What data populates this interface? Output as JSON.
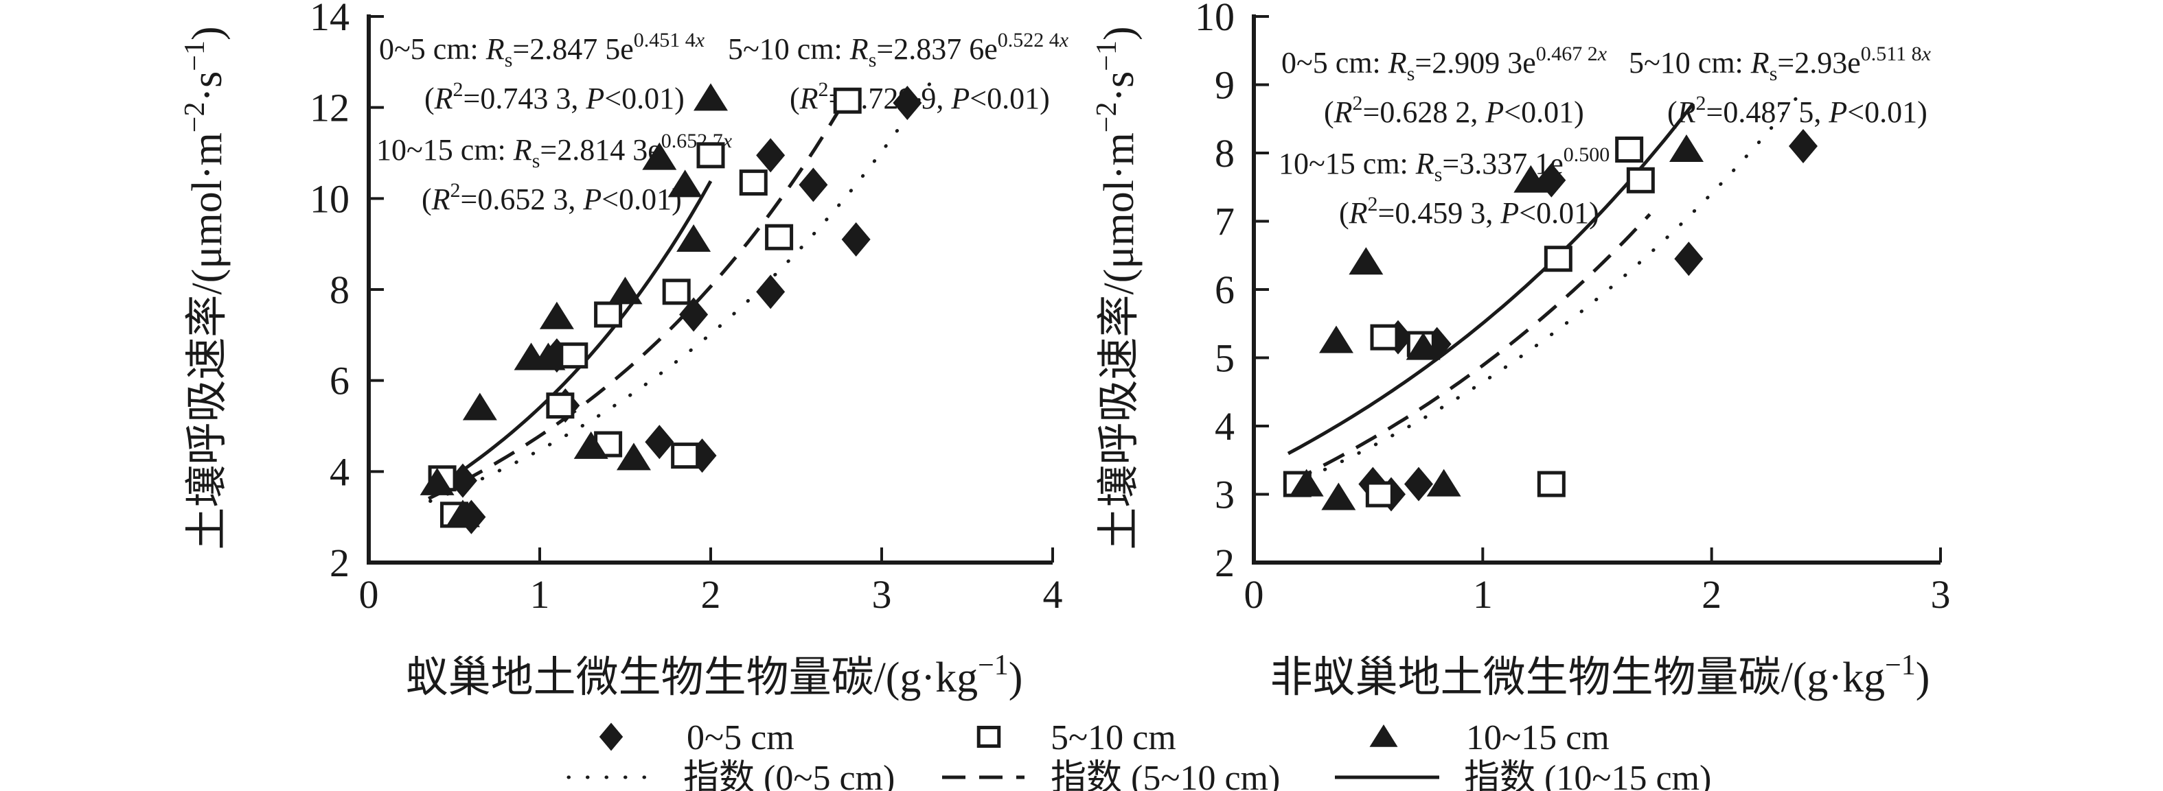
{
  "colors": {
    "ink": "#1a1a1a",
    "background": "#ffffff"
  },
  "chart_data": {
    "type": "scatter",
    "legend_position": "bottom",
    "grid": false,
    "panels": [
      {
        "name": "ant-nest-panel",
        "x_title_parts": [
          {
            "t": "蚁巢地土微生物生物量碳/(g·kg"
          },
          {
            "t": "−1",
            "sup": 1
          },
          {
            "t": ")"
          }
        ],
        "y_title_parts": [
          {
            "t": "土壤呼吸速率/(μmol·m"
          },
          {
            "t": "−2",
            "sup": 1
          },
          {
            "t": "·s"
          },
          {
            "t": "−1",
            "sup": 1
          },
          {
            "t": ")"
          }
        ],
        "x_ticks": [
          0,
          1,
          2,
          3,
          4
        ],
        "y_ticks": [
          2,
          4,
          6,
          8,
          10,
          12,
          14
        ],
        "xlim": [
          0,
          4
        ],
        "ylim": [
          2,
          14
        ],
        "geom": {
          "x0": 537,
          "x1": 1533,
          "y0": 820,
          "y1": 24
        },
        "x_title_pos": {
          "x": 1040,
          "y": 1008
        },
        "y_title_pos": {
          "x": 322,
          "y": 420
        },
        "equations": [
          {
            "lines": [
              {
                "x": 552,
                "y": 86,
                "parts": [
                  {
                    "t": "0~5 cm: "
                  },
                  {
                    "t": "R",
                    "i": 1
                  },
                  {
                    "t": "s",
                    "sub": 1
                  },
                  {
                    "t": "=2.847 5e"
                  },
                  {
                    "t": "0.451 4",
                    "sup": 1
                  },
                  {
                    "t": "x",
                    "sup": 1,
                    "i": 1
                  }
                ]
              },
              {
                "x": 618,
                "y": 158,
                "parts": [
                  {
                    "t": "("
                  },
                  {
                    "t": "R",
                    "i": 1
                  },
                  {
                    "t": "2",
                    "sup": 1
                  },
                  {
                    "t": "=0.743 3, "
                  },
                  {
                    "t": "P",
                    "i": 1
                  },
                  {
                    "t": "<0.01)"
                  }
                ]
              }
            ]
          },
          {
            "lines": [
              {
                "x": 1060,
                "y": 86,
                "parts": [
                  {
                    "t": "5~10 cm: "
                  },
                  {
                    "t": "R",
                    "i": 1
                  },
                  {
                    "t": "s",
                    "sub": 1
                  },
                  {
                    "t": "=2.837 6e"
                  },
                  {
                    "t": "0.522 4",
                    "sup": 1
                  },
                  {
                    "t": "x",
                    "sup": 1,
                    "i": 1
                  }
                ]
              },
              {
                "x": 1150,
                "y": 158,
                "parts": [
                  {
                    "t": "("
                  },
                  {
                    "t": "R",
                    "i": 1
                  },
                  {
                    "t": "2",
                    "sup": 1
                  },
                  {
                    "t": "=0.729 9, "
                  },
                  {
                    "t": "P",
                    "i": 1
                  },
                  {
                    "t": "<0.01)"
                  }
                ]
              }
            ]
          },
          {
            "lines": [
              {
                "x": 548,
                "y": 233,
                "parts": [
                  {
                    "t": "10~15 cm: "
                  },
                  {
                    "t": "R",
                    "i": 1
                  },
                  {
                    "t": "s",
                    "sub": 1
                  },
                  {
                    "t": "=2.814 3e"
                  },
                  {
                    "t": "0.652 7",
                    "sup": 1
                  },
                  {
                    "t": "x",
                    "sup": 1,
                    "i": 1
                  }
                ]
              },
              {
                "x": 614,
                "y": 305,
                "parts": [
                  {
                    "t": "("
                  },
                  {
                    "t": "R",
                    "i": 1
                  },
                  {
                    "t": "2",
                    "sup": 1
                  },
                  {
                    "t": "=0.652 3, "
                  },
                  {
                    "t": "P",
                    "i": 1
                  },
                  {
                    "t": "<0.01)"
                  }
                ]
              }
            ]
          }
        ],
        "series": [
          {
            "name": "0~5 cm",
            "marker": "diamond",
            "points": [
              [
                0.55,
                3.8
              ],
              [
                0.6,
                3.0
              ],
              [
                1.1,
                6.55
              ],
              [
                1.15,
                5.45
              ],
              [
                1.7,
                4.65
              ],
              [
                1.9,
                7.45
              ],
              [
                1.95,
                4.35
              ],
              [
                2.35,
                7.95
              ],
              [
                2.35,
                10.95
              ],
              [
                2.6,
                10.3
              ],
              [
                2.85,
                9.1
              ],
              [
                3.15,
                12.1
              ]
            ]
          },
          {
            "name": "5~10 cm",
            "marker": "square",
            "points": [
              [
                0.43,
                3.85
              ],
              [
                0.5,
                3.05
              ],
              [
                1.12,
                5.45
              ],
              [
                1.2,
                6.55
              ],
              [
                1.4,
                7.45
              ],
              [
                1.4,
                4.6
              ],
              [
                1.8,
                7.95
              ],
              [
                1.85,
                4.35
              ],
              [
                2.0,
                10.95
              ],
              [
                2.25,
                10.35
              ],
              [
                2.4,
                9.15
              ],
              [
                2.8,
                12.15
              ]
            ]
          },
          {
            "name": "10~15 cm",
            "marker": "triangle",
            "points": [
              [
                0.4,
                3.75
              ],
              [
                0.55,
                3.05
              ],
              [
                0.65,
                5.4
              ],
              [
                0.95,
                6.5
              ],
              [
                1.05,
                6.5
              ],
              [
                1.1,
                7.4
              ],
              [
                1.3,
                4.55
              ],
              [
                1.5,
                7.95
              ],
              [
                1.55,
                4.3
              ],
              [
                1.7,
                10.9
              ],
              [
                1.85,
                10.3
              ],
              [
                1.9,
                9.1
              ],
              [
                2.0,
                12.2
              ]
            ]
          }
        ],
        "curves": [
          {
            "label": "指数 (0~5 cm)",
            "style": "dotted",
            "a": 2.8475,
            "b": 0.4514,
            "x_start": 0.36,
            "x_end": 3.3
          },
          {
            "label": "指数 (5~10 cm)",
            "style": "dashed",
            "a": 2.8376,
            "b": 0.5224,
            "x_start": 0.35,
            "x_end": 2.82
          },
          {
            "label": "指数 (10~15 cm)",
            "style": "solid",
            "a": 2.8143,
            "b": 0.6527,
            "x_start": 0.34,
            "x_end": 2.0
          }
        ]
      },
      {
        "name": "non-ant-nest-panel",
        "x_title_parts": [
          {
            "t": "非蚁巢地土微生物生物量碳/(g·kg"
          },
          {
            "t": "−1",
            "sup": 1
          },
          {
            "t": ")"
          }
        ],
        "y_title_parts": [
          {
            "t": "土壤呼吸速率/(μmol·m"
          },
          {
            "t": "−2",
            "sup": 1
          },
          {
            "t": "·s"
          },
          {
            "t": "−1",
            "sup": 1
          },
          {
            "t": ")"
          }
        ],
        "x_ticks": [
          0,
          1,
          2,
          3
        ],
        "y_ticks": [
          2,
          3,
          4,
          5,
          6,
          7,
          8,
          9,
          10
        ],
        "xlim": [
          0,
          3
        ],
        "ylim": [
          2,
          10
        ],
        "geom": {
          "x0": 1826,
          "x1": 2826,
          "y0": 820,
          "y1": 24
        },
        "x_title_pos": {
          "x": 2330,
          "y": 1008
        },
        "y_title_pos": {
          "x": 1650,
          "y": 420
        },
        "equations": [
          {
            "lines": [
              {
                "x": 1866,
                "y": 106,
                "parts": [
                  {
                    "t": "0~5 cm: "
                  },
                  {
                    "t": "R",
                    "i": 1
                  },
                  {
                    "t": "s",
                    "sub": 1
                  },
                  {
                    "t": "=2.909 3e"
                  },
                  {
                    "t": "0.467 2",
                    "sup": 1
                  },
                  {
                    "t": "x",
                    "sup": 1,
                    "i": 1
                  }
                ]
              },
              {
                "x": 1928,
                "y": 178,
                "parts": [
                  {
                    "t": "("
                  },
                  {
                    "t": "R",
                    "i": 1
                  },
                  {
                    "t": "2",
                    "sup": 1
                  },
                  {
                    "t": "=0.628 2, "
                  },
                  {
                    "t": "P",
                    "i": 1
                  },
                  {
                    "t": "<0.01)"
                  }
                ]
              }
            ]
          },
          {
            "lines": [
              {
                "x": 2372,
                "y": 106,
                "parts": [
                  {
                    "t": "5~10 cm: "
                  },
                  {
                    "t": "R",
                    "i": 1
                  },
                  {
                    "t": "s",
                    "sub": 1
                  },
                  {
                    "t": "=2.93e"
                  },
                  {
                    "t": "0.511 8",
                    "sup": 1
                  },
                  {
                    "t": "x",
                    "sup": 1,
                    "i": 1
                  }
                ]
              },
              {
                "x": 2428,
                "y": 178,
                "parts": [
                  {
                    "t": "("
                  },
                  {
                    "t": "R",
                    "i": 1
                  },
                  {
                    "t": "2",
                    "sup": 1
                  },
                  {
                    "t": "=0.487 5, "
                  },
                  {
                    "t": "P",
                    "i": 1
                  },
                  {
                    "t": "<0.01)"
                  }
                ]
              }
            ]
          },
          {
            "lines": [
              {
                "x": 1862,
                "y": 253,
                "parts": [
                  {
                    "t": "10~15 cm: "
                  },
                  {
                    "t": "R",
                    "i": 1
                  },
                  {
                    "t": "s",
                    "sub": 1
                  },
                  {
                    "t": "=3.337 1e"
                  },
                  {
                    "t": "0.500 6",
                    "sup": 1
                  },
                  {
                    "t": "x",
                    "sup": 1,
                    "i": 1
                  }
                ]
              },
              {
                "x": 1950,
                "y": 325,
                "parts": [
                  {
                    "t": "("
                  },
                  {
                    "t": "R",
                    "i": 1
                  },
                  {
                    "t": "2",
                    "sup": 1
                  },
                  {
                    "t": "=0.459 3, "
                  },
                  {
                    "t": "P",
                    "i": 1
                  },
                  {
                    "t": "<0.01)"
                  }
                ]
              }
            ]
          }
        ],
        "series": [
          {
            "name": "0~5 cm",
            "marker": "diamond",
            "points": [
              [
                0.52,
                3.15
              ],
              [
                0.6,
                3.0
              ],
              [
                0.63,
                5.3
              ],
              [
                0.72,
                3.15
              ],
              [
                0.8,
                5.2
              ],
              [
                1.3,
                7.6
              ],
              [
                1.9,
                6.45
              ],
              [
                2.4,
                8.1
              ]
            ]
          },
          {
            "name": "5~10 cm",
            "marker": "square",
            "points": [
              [
                0.19,
                3.15
              ],
              [
                0.55,
                3.0
              ],
              [
                0.57,
                5.3
              ],
              [
                0.73,
                5.2
              ],
              [
                1.3,
                3.15
              ],
              [
                1.33,
                6.45
              ],
              [
                1.64,
                8.05
              ],
              [
                1.69,
                7.6
              ]
            ]
          },
          {
            "name": "10~15 cm",
            "marker": "triangle",
            "points": [
              [
                0.23,
                3.15
              ],
              [
                0.36,
                5.25
              ],
              [
                0.37,
                2.95
              ],
              [
                0.49,
                6.4
              ],
              [
                0.74,
                5.15
              ],
              [
                0.83,
                3.15
              ],
              [
                1.21,
                7.6
              ],
              [
                1.89,
                8.05
              ]
            ]
          }
        ],
        "curves": [
          {
            "label": "指数 (0~5 cm)",
            "style": "dotted",
            "a": 2.9093,
            "b": 0.4672,
            "x_start": 0.16,
            "x_end": 2.38
          },
          {
            "label": "指数 (5~10 cm)",
            "style": "dashed",
            "a": 2.93,
            "b": 0.5118,
            "x_start": 0.16,
            "x_end": 1.73
          },
          {
            "label": "指数 (10~15 cm)",
            "style": "solid",
            "a": 3.3371,
            "b": 0.5006,
            "x_start": 0.15,
            "x_end": 1.92
          }
        ]
      }
    ],
    "legend": {
      "marker_row_y": 1074,
      "line_row_y": 1133,
      "marker_items": [
        {
          "marker": "diamond",
          "label": "0~5 cm",
          "marker_x": 890,
          "text_x": 1000
        },
        {
          "marker": "square",
          "label": "5~10 cm",
          "marker_x": 1440,
          "text_x": 1530
        },
        {
          "marker": "triangle",
          "label": "10~15 cm",
          "marker_x": 2015,
          "text_x": 2135
        }
      ],
      "line_items": [
        {
          "style": "dotted",
          "label": "指数 (0~5 cm)",
          "x1": 828,
          "x2": 958,
          "text_x": 995
        },
        {
          "style": "dashed",
          "label": "指数 (5~10 cm)",
          "x1": 1372,
          "x2": 1492,
          "text_x": 1530
        },
        {
          "style": "solid",
          "label": "指数 (10~15 cm)",
          "x1": 1944,
          "x2": 2096,
          "text_x": 2132
        }
      ]
    }
  }
}
